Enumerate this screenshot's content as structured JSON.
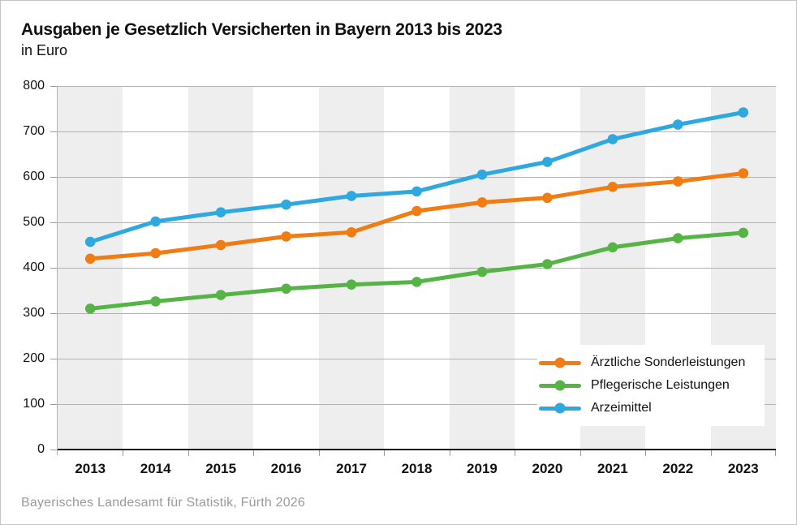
{
  "chart_data": {
    "type": "line",
    "title": "Ausgaben je Gesetzlich Versicherten in Bayern 2013 bis 2023",
    "subtitle": "in Euro",
    "categories": [
      "2013",
      "2014",
      "2015",
      "2016",
      "2017",
      "2018",
      "2019",
      "2020",
      "2021",
      "2022",
      "2023"
    ],
    "series": [
      {
        "name": "Ärztliche Sonderleistungen",
        "color": "#EF7D14",
        "values": [
          420,
          432,
          450,
          469,
          478,
          525,
          544,
          554,
          578,
          590,
          608
        ]
      },
      {
        "name": "Pflegerische Leistungen",
        "color": "#56B446",
        "values": [
          310,
          326,
          340,
          354,
          363,
          369,
          391,
          408,
          445,
          465,
          477
        ]
      },
      {
        "name": "Arzeimittel",
        "color": "#2FA8DF",
        "values": [
          457,
          502,
          522,
          539,
          558,
          568,
          605,
          633,
          683,
          715,
          742
        ]
      }
    ],
    "ylim": [
      0,
      800
    ],
    "yticks": [
      0,
      100,
      200,
      300,
      400,
      500,
      600,
      700,
      800
    ],
    "xlabel": "",
    "ylabel": "",
    "grid": "horizontal",
    "plot_background": "alternating vertical year stripes",
    "legend_position": "inside bottom-right",
    "source": "Bayerisches Landesamt für Statistik, Fürth 2026"
  }
}
